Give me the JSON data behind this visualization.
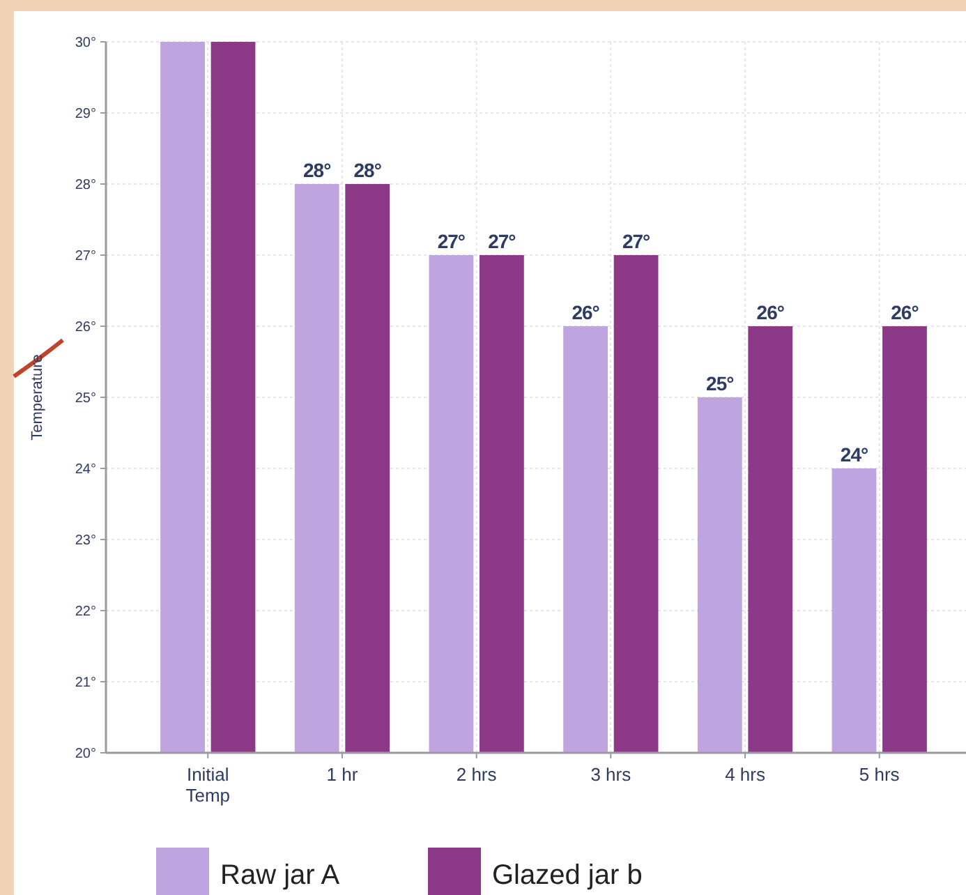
{
  "chart_data": {
    "type": "bar",
    "ylabel": "Temperature",
    "categories": [
      "Initial Temp",
      "1 hr",
      "2 hrs",
      "3 hrs",
      "4 hrs",
      "5 hrs"
    ],
    "series": [
      {
        "name": "Raw jar A",
        "color": "#bea5e0",
        "values": [
          30,
          28,
          27,
          26,
          25,
          24
        ],
        "value_labels": [
          null,
          "28°",
          "27°",
          "26°",
          "25°",
          "24°"
        ]
      },
      {
        "name": "Glazed jar b",
        "color": "#8c3a88",
        "values": [
          30,
          28,
          27,
          27,
          26,
          26
        ],
        "value_labels": [
          null,
          "28°",
          "27°",
          "27°",
          "26°",
          "26°"
        ]
      }
    ],
    "ylim": [
      20,
      30
    ],
    "yticks": [
      {
        "value": 20,
        "label": "20°"
      },
      {
        "value": 21,
        "label": "21°"
      },
      {
        "value": 22,
        "label": "22°"
      },
      {
        "value": 23,
        "label": "23°"
      },
      {
        "value": 24,
        "label": "24°"
      },
      {
        "value": 25,
        "label": "25°"
      },
      {
        "value": 26,
        "label": "26°"
      },
      {
        "value": 27,
        "label": "27°"
      },
      {
        "value": 28,
        "label": "28°"
      },
      {
        "value": 29,
        "label": "29°"
      },
      {
        "value": 30,
        "label": "30°"
      }
    ],
    "grid": true,
    "legend": "bottom left"
  }
}
